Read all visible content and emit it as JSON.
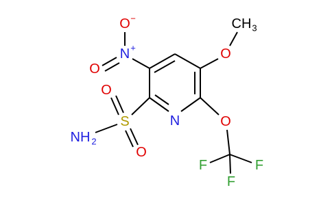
{
  "atoms": [
    {
      "label": "O",
      "charge": "−"
    },
    {
      "label": "N",
      "charge": "+"
    },
    {
      "label": "O"
    },
    {
      "label": "O"
    },
    {
      "label": "CH",
      "subscript": "3"
    },
    {
      "label": "N"
    },
    {
      "label": "S"
    },
    {
      "label": "O"
    },
    {
      "label": "O"
    },
    {
      "label": "NH",
      "subscript": "2"
    },
    {
      "label": "O"
    },
    {
      "label": "F"
    },
    {
      "label": "F"
    },
    {
      "label": "F"
    }
  ]
}
